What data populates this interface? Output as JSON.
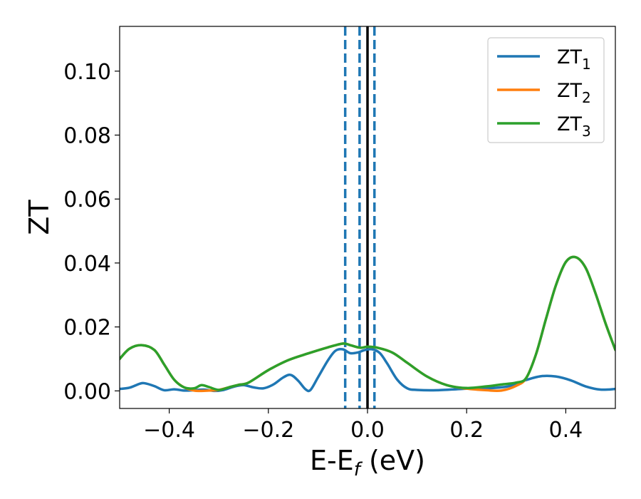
{
  "chart_data": {
    "type": "line",
    "title": "",
    "xlabel": {
      "main": "E-E",
      "subscript": "f",
      "suffix": " (eV)"
    },
    "ylabel": "ZT",
    "xlim": [
      -0.5,
      0.5
    ],
    "ylim": [
      -0.0055,
      0.114
    ],
    "xticks": [
      -0.4,
      -0.2,
      0.0,
      0.2,
      0.4
    ],
    "xtick_labels": [
      "−0.4",
      "−0.2",
      "0.0",
      "0.2",
      "0.4"
    ],
    "yticks": [
      0.0,
      0.02,
      0.04,
      0.06,
      0.08,
      0.1
    ],
    "ytick_labels": [
      "0.00",
      "0.02",
      "0.04",
      "0.06",
      "0.08",
      "0.10"
    ],
    "grid": false,
    "legend_position": "top-right",
    "vlines": [
      {
        "x": -0.045,
        "style": "dashed",
        "color": "#1f77b4"
      },
      {
        "x": -0.016,
        "style": "dashed",
        "color": "#1f77b4"
      },
      {
        "x": 0.0,
        "style": "solid",
        "color": "#000000"
      },
      {
        "x": 0.014,
        "style": "dashed",
        "color": "#1f77b4"
      }
    ],
    "series": [
      {
        "name": "ZT",
        "subscript": "1",
        "color": "#1f77b4",
        "x": [
          -0.5,
          -0.48,
          -0.46,
          -0.45,
          -0.43,
          -0.41,
          -0.39,
          -0.37,
          -0.35,
          -0.33,
          -0.31,
          -0.29,
          -0.27,
          -0.25,
          -0.23,
          -0.21,
          -0.19,
          -0.17,
          -0.155,
          -0.14,
          -0.125,
          -0.115,
          -0.1,
          -0.08,
          -0.065,
          -0.05,
          -0.035,
          -0.02,
          -0.005,
          0.01,
          0.025,
          0.04,
          0.06,
          0.08,
          0.1,
          0.14,
          0.2,
          0.24,
          0.28,
          0.3,
          0.32,
          0.35,
          0.38,
          0.41,
          0.44,
          0.47,
          0.5
        ],
        "y": [
          0.0006,
          0.001,
          0.0022,
          0.0024,
          0.0015,
          0.0002,
          0.0005,
          0.0001,
          0.0002,
          0.0004,
          0.0,
          0.0003,
          0.0013,
          0.0018,
          0.0011,
          0.0008,
          0.002,
          0.0042,
          0.005,
          0.0032,
          0.0005,
          0.0003,
          0.0042,
          0.0095,
          0.0125,
          0.013,
          0.0118,
          0.012,
          0.0128,
          0.013,
          0.0118,
          0.0085,
          0.0035,
          0.0008,
          0.0003,
          0.0002,
          0.0007,
          0.0008,
          0.0013,
          0.0022,
          0.0034,
          0.0046,
          0.0045,
          0.0033,
          0.0014,
          0.0004,
          0.0006
        ]
      },
      {
        "name": "ZT",
        "subscript": "2",
        "color": "#ff7f0e",
        "x": [
          -0.5,
          -0.48,
          -0.455,
          -0.43,
          -0.41,
          -0.39,
          -0.37,
          -0.35,
          -0.335,
          -0.32,
          -0.3,
          -0.28,
          -0.26,
          -0.24,
          -0.2,
          -0.16,
          -0.12,
          -0.08,
          -0.05,
          -0.035,
          -0.015,
          0.0,
          0.02,
          0.05,
          0.08,
          0.12,
          0.16,
          0.2,
          0.24,
          0.27,
          0.3,
          0.32,
          0.34,
          0.36,
          0.38,
          0.4,
          0.42,
          0.44,
          0.46,
          0.48,
          0.5
        ],
        "y": [
          0.01,
          0.0132,
          0.0143,
          0.0128,
          0.0082,
          0.0035,
          0.0011,
          0.0001,
          0.0,
          0.0001,
          0.0003,
          0.0011,
          0.0019,
          0.0026,
          0.0065,
          0.0096,
          0.0117,
          0.0136,
          0.0148,
          0.0143,
          0.0135,
          0.0138,
          0.0135,
          0.012,
          0.0088,
          0.0045,
          0.0018,
          0.0007,
          0.0002,
          0.0001,
          0.0016,
          0.004,
          0.0115,
          0.0225,
          0.033,
          0.0403,
          0.0418,
          0.0385,
          0.0305,
          0.0212,
          0.0128
        ]
      },
      {
        "name": "ZT",
        "subscript": "3",
        "color": "#2ca02c",
        "x": [
          -0.5,
          -0.48,
          -0.455,
          -0.43,
          -0.41,
          -0.39,
          -0.37,
          -0.35,
          -0.335,
          -0.32,
          -0.3,
          -0.28,
          -0.26,
          -0.24,
          -0.2,
          -0.16,
          -0.12,
          -0.08,
          -0.05,
          -0.035,
          -0.015,
          0.0,
          0.02,
          0.05,
          0.08,
          0.12,
          0.16,
          0.2,
          0.24,
          0.27,
          0.3,
          0.32,
          0.34,
          0.36,
          0.38,
          0.4,
          0.42,
          0.44,
          0.46,
          0.48,
          0.5
        ],
        "y": [
          0.01,
          0.0132,
          0.0143,
          0.0128,
          0.0082,
          0.0035,
          0.0011,
          0.0008,
          0.0018,
          0.0012,
          0.0003,
          0.0011,
          0.0019,
          0.0026,
          0.0065,
          0.0096,
          0.0117,
          0.0136,
          0.0148,
          0.0143,
          0.0135,
          0.0138,
          0.0135,
          0.012,
          0.0088,
          0.0045,
          0.0018,
          0.0009,
          0.0014,
          0.002,
          0.0026,
          0.004,
          0.0115,
          0.0225,
          0.033,
          0.0403,
          0.0418,
          0.0385,
          0.0305,
          0.0212,
          0.0128
        ]
      }
    ]
  }
}
